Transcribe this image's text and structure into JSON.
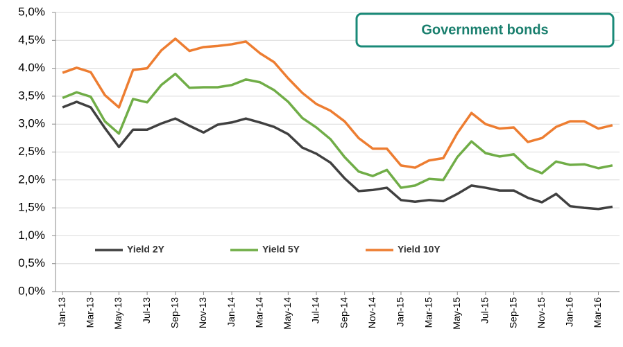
{
  "chart_data": {
    "type": "line",
    "title": "Government bonds",
    "categories": [
      "Jan-13",
      null,
      "Mar-13",
      null,
      "May-13",
      null,
      "Jul-13",
      null,
      "Sep-13",
      null,
      "Nov-13",
      null,
      "Jan-14",
      null,
      "Mar-14",
      null,
      "May-14",
      null,
      "Jul-14",
      null,
      "Sep-14",
      null,
      "Nov-14",
      null,
      "Jan-15",
      null,
      "Mar-15",
      null,
      "May-15",
      null,
      "Jul-15",
      null,
      "Sep-15",
      null,
      "Nov-15",
      null,
      "Jan-16",
      null,
      "Mar-16",
      null
    ],
    "series": [
      {
        "name": "Yield 2Y",
        "color": "#404040",
        "values": [
          3.3,
          3.4,
          3.3,
          2.93,
          2.59,
          2.9,
          2.9,
          3.01,
          3.1,
          2.97,
          2.85,
          2.99,
          3.03,
          3.1,
          3.03,
          2.95,
          2.82,
          2.58,
          2.47,
          2.31,
          2.03,
          1.8,
          1.82,
          1.86,
          1.64,
          1.61,
          1.64,
          1.62,
          1.75,
          1.9,
          1.86,
          1.81,
          1.81,
          1.68,
          1.6,
          1.75,
          1.53,
          1.5,
          1.48,
          1.52
        ]
      },
      {
        "name": "Yield 5Y",
        "color": "#70ad47",
        "values": [
          3.47,
          3.57,
          3.49,
          3.05,
          2.83,
          3.45,
          3.39,
          3.7,
          3.9,
          3.65,
          3.66,
          3.66,
          3.7,
          3.8,
          3.75,
          3.61,
          3.4,
          3.11,
          2.94,
          2.73,
          2.41,
          2.15,
          2.07,
          2.18,
          1.86,
          1.9,
          2.02,
          2.0,
          2.41,
          2.69,
          2.48,
          2.42,
          2.46,
          2.22,
          2.12,
          2.33,
          2.27,
          2.28,
          2.21,
          2.26
        ]
      },
      {
        "name": "Yield 10Y",
        "color": "#ed7d31",
        "values": [
          3.92,
          4.01,
          3.93,
          3.52,
          3.3,
          3.97,
          4.0,
          4.32,
          4.53,
          4.31,
          4.38,
          4.4,
          4.43,
          4.48,
          4.27,
          4.11,
          3.82,
          3.56,
          3.36,
          3.24,
          3.05,
          2.75,
          2.56,
          2.56,
          2.26,
          2.22,
          2.35,
          2.39,
          2.84,
          3.2,
          3.0,
          2.92,
          2.94,
          2.68,
          2.75,
          2.95,
          3.05,
          3.05,
          2.92,
          2.98
        ]
      }
    ],
    "ylim": [
      0,
      5
    ],
    "yticks": [
      {
        "value": 0,
        "label": "0,0%"
      },
      {
        "value": 0.5,
        "label": "0,5%"
      },
      {
        "value": 1,
        "label": "1,0%"
      },
      {
        "value": 1.5,
        "label": "1,5%"
      },
      {
        "value": 2,
        "label": "2,0%"
      },
      {
        "value": 2.5,
        "label": "2,5%"
      },
      {
        "value": 3,
        "label": "3,0%"
      },
      {
        "value": 3.5,
        "label": "3,5%"
      },
      {
        "value": 4,
        "label": "4.0%"
      },
      {
        "value": 4.5,
        "label": "4,5%"
      },
      {
        "value": 5,
        "label": "5,0%"
      }
    ],
    "grid": true,
    "legend": "lower left"
  }
}
